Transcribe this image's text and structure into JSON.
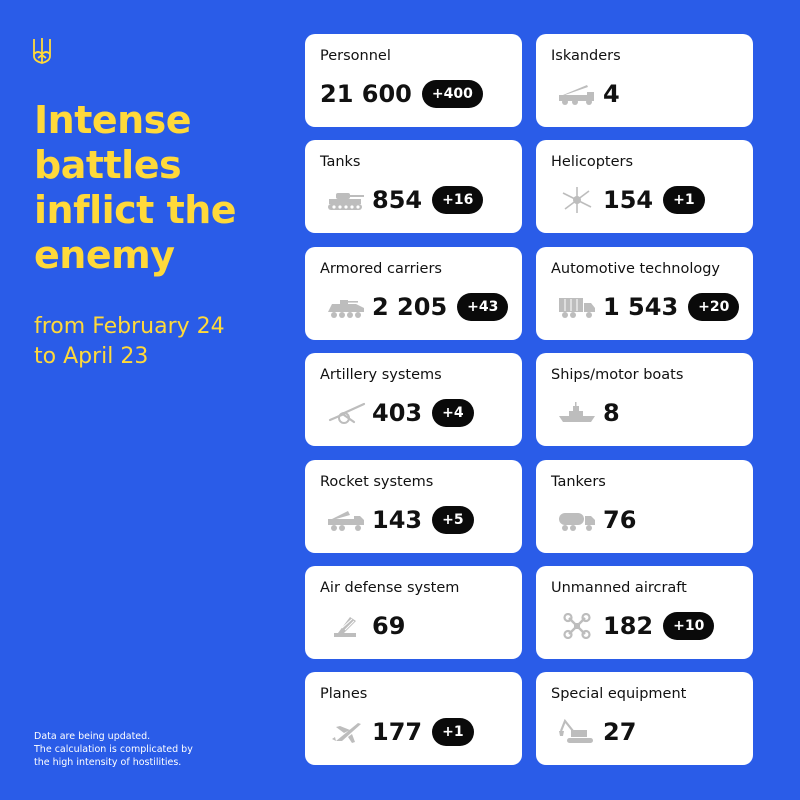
{
  "header": {
    "title_lines": [
      "Intense",
      "battles",
      "inflict the",
      "enemy"
    ],
    "period_lines": [
      "from February 24",
      "to April 23"
    ],
    "note_lines": [
      "Data are being updated.",
      "The calculation is complicated by",
      "the high intensity of hostilities."
    ]
  },
  "colors": {
    "background": "#2a5ce8",
    "accent": "#ffd93a",
    "card": "#ffffff",
    "badge": "#0a0a0a"
  },
  "cards": [
    {
      "label": "Personnel",
      "value": "21 600",
      "delta": "+400",
      "icon": "soldier-icon"
    },
    {
      "label": "Iskanders",
      "value": "4",
      "delta": "",
      "icon": "missile-launcher-icon"
    },
    {
      "label": "Tanks",
      "value": "854",
      "delta": "+16",
      "icon": "tank-icon"
    },
    {
      "label": "Helicopters",
      "value": "154",
      "delta": "+1",
      "icon": "helicopter-icon"
    },
    {
      "label": "Armored carriers",
      "value": "2 205",
      "delta": "+43",
      "icon": "armored-carrier-icon"
    },
    {
      "label": "Automotive technology",
      "value": "1 543",
      "delta": "+20",
      "icon": "truck-icon"
    },
    {
      "label": "Artillery systems",
      "value": "403",
      "delta": "+4",
      "icon": "artillery-icon"
    },
    {
      "label": "Ships/motor boats",
      "value": "8",
      "delta": "",
      "icon": "ship-icon"
    },
    {
      "label": "Rocket systems",
      "value": "143",
      "delta": "+5",
      "icon": "rocket-launcher-icon"
    },
    {
      "label": "Tankers",
      "value": "76",
      "delta": "",
      "icon": "fuel-tanker-icon"
    },
    {
      "label": "Air defense system",
      "value": "69",
      "delta": "",
      "icon": "air-defense-icon"
    },
    {
      "label": "Unmanned aircraft",
      "value": "182",
      "delta": "+10",
      "icon": "drone-icon"
    },
    {
      "label": "Planes",
      "value": "177",
      "delta": "+1",
      "icon": "plane-icon"
    },
    {
      "label": "Special equipment",
      "value": "27",
      "delta": "",
      "icon": "excavator-icon"
    }
  ]
}
